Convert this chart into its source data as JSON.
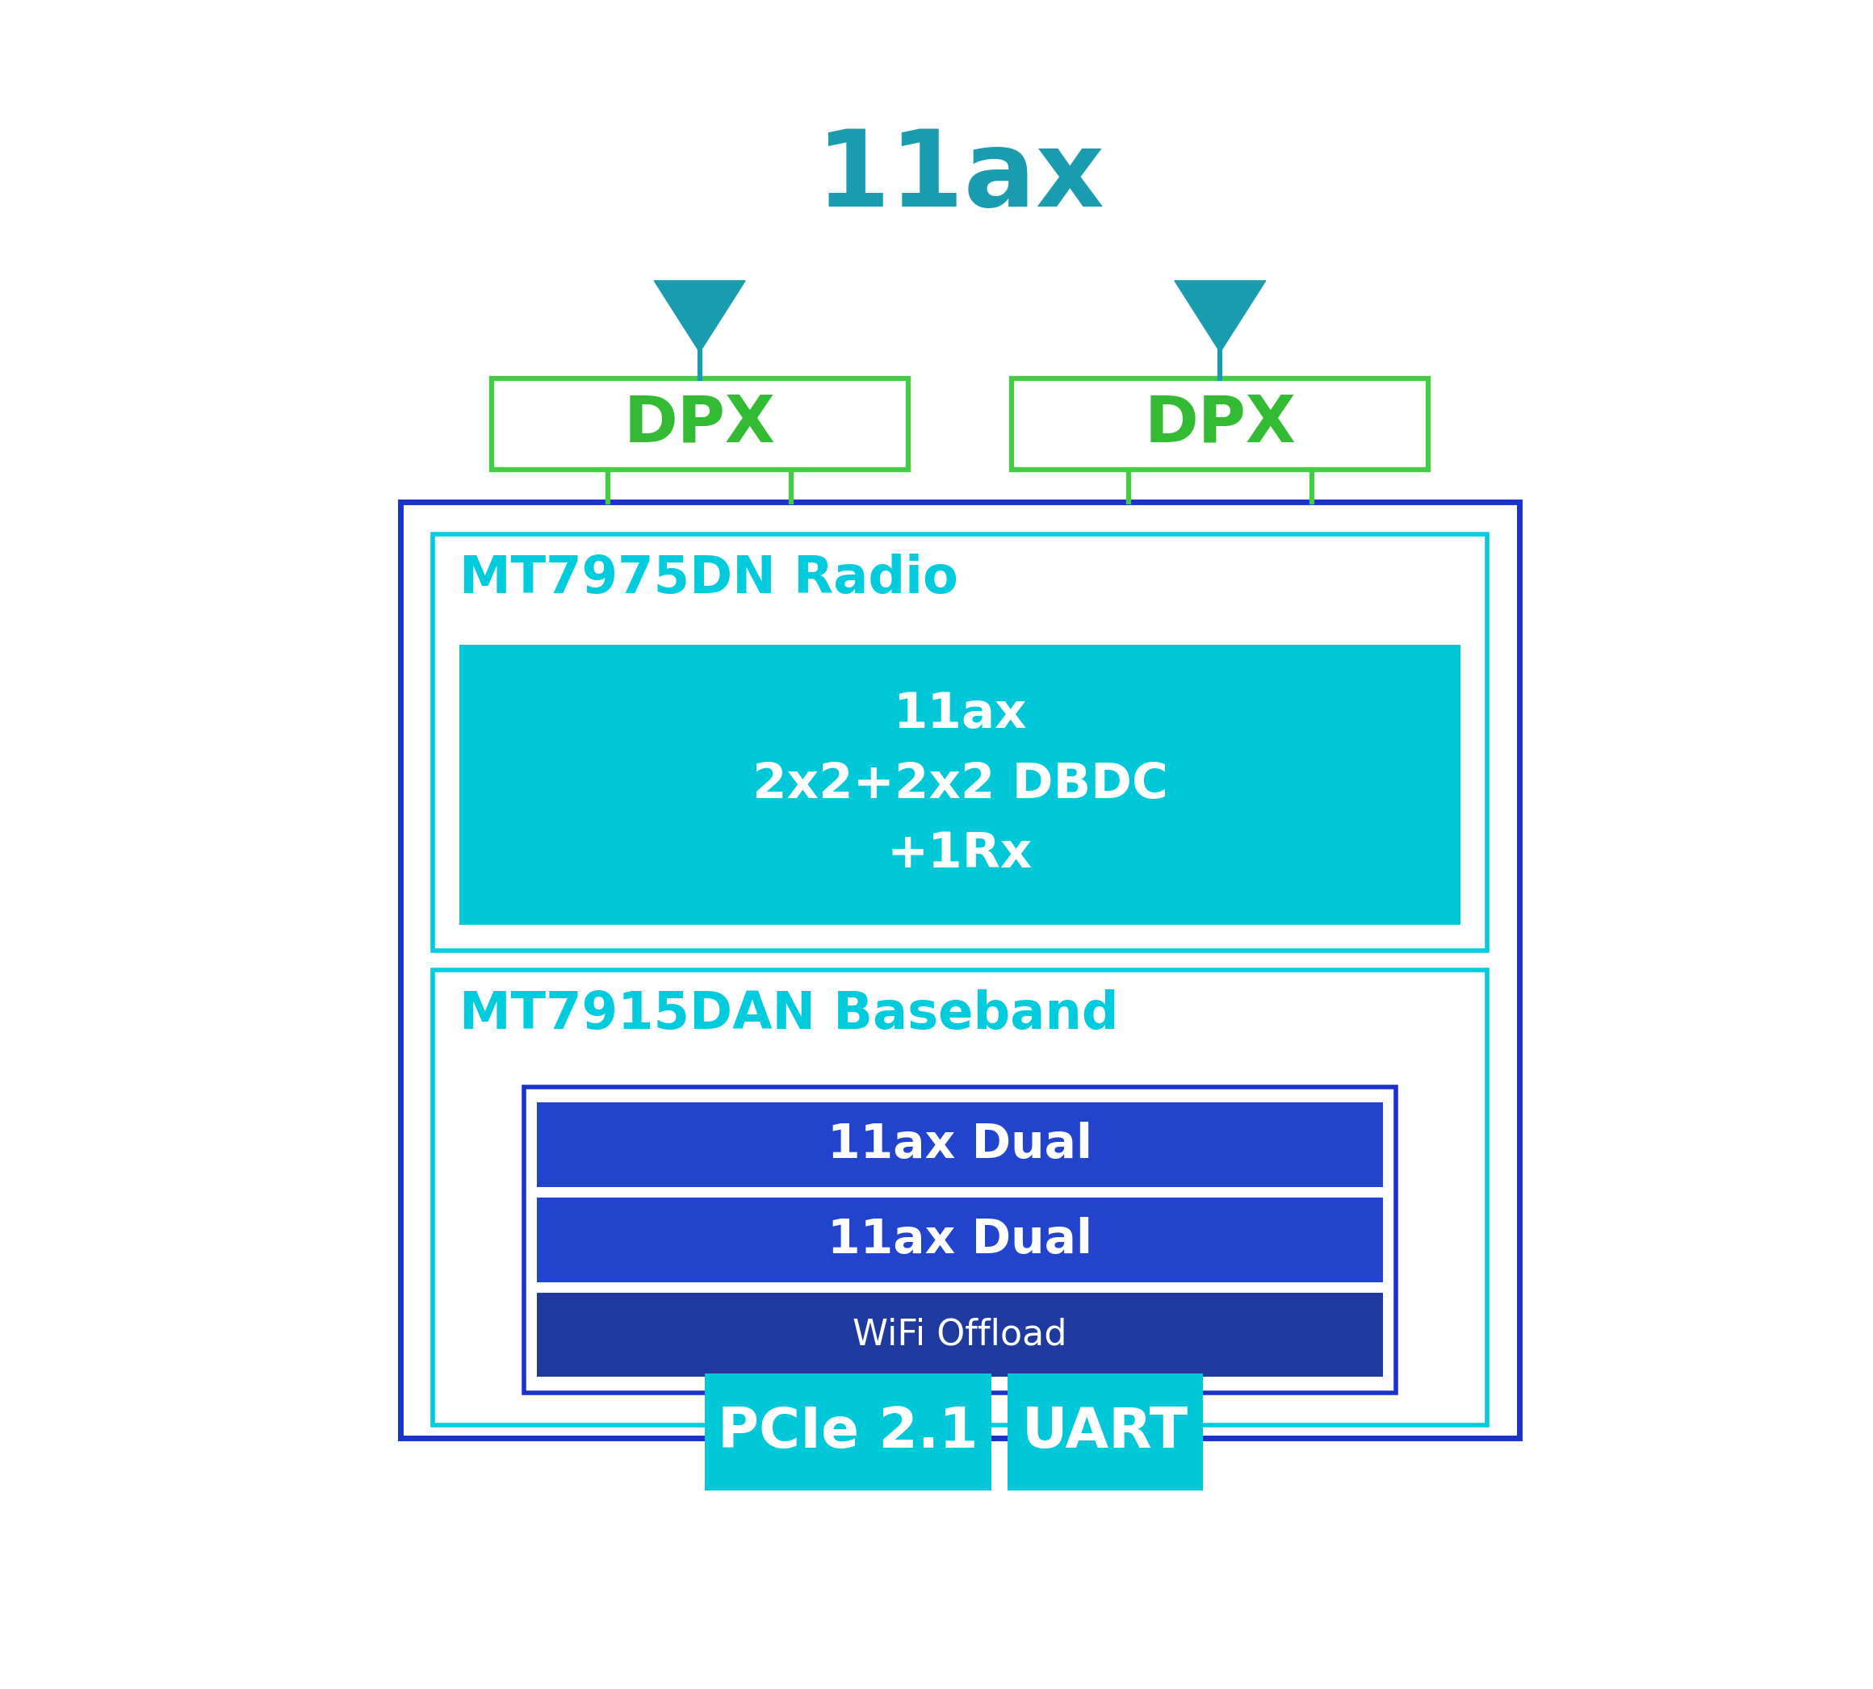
{
  "fig_width": 23.2,
  "fig_height": 20.93,
  "bg_color": "#ffffff",
  "title": "11ax",
  "title_color": "#1a9cb0",
  "title_fontsize": 95,
  "title_fontweight": "bold",
  "antenna_color": "#1a9cb0",
  "dpx_border_color": "#44cc44",
  "dpx_fill_color": "#ffffff",
  "dpx_text_color": "#33bb33",
  "dpx_text": "DPX",
  "dpx_fontsize": 58,
  "dpx_fontweight": "bold",
  "outer_box_border_color": "#1a33cc",
  "outer_box_fill_color": "#ffffff",
  "radio_border_color": "#00ccdd",
  "radio_fill_color": "#ffffff",
  "radio_label": "MT7975DN Radio",
  "radio_label_color": "#00ccdd",
  "radio_label_fontsize": 46,
  "radio_inner_fill": "#00c8d8",
  "radio_inner_text": "11ax\n2x2+2x2 DBDC\n+1Rx",
  "radio_inner_text_color": "#ffffff",
  "radio_inner_fontsize": 44,
  "baseband_border_color": "#00ccdd",
  "baseband_fill_color": "#ffffff",
  "baseband_label": "MT7915DAN Baseband",
  "baseband_label_color": "#00ccdd",
  "baseband_label_fontsize": 46,
  "baseband_inner_border": "#1a33cc",
  "baseband_inner_fill": "#ffffff",
  "bb_bar1_text": "11ax Dual",
  "bb_bar2_text": "11ax Dual",
  "bb_bar3_text": "WiFi Offload",
  "bb_bar_fill": "#2244cc",
  "bb_bar3_fill": "#1e3a9e",
  "bb_bar_text_color": "#ffffff",
  "bb_bar_fontsize": 42,
  "bb_bar3_fontsize": 32,
  "pcie_fill": "#00c8d8",
  "pcie_text": "PCIe 2.1",
  "pcie_text_color": "#ffffff",
  "pcie_fontsize": 50,
  "uart_fill": "#00c8d8",
  "uart_text": "UART",
  "uart_text_color": "#ffffff",
  "uart_fontsize": 50,
  "antenna_stem_color": "#1a9cb0",
  "green_connector_color": "#44cc44"
}
